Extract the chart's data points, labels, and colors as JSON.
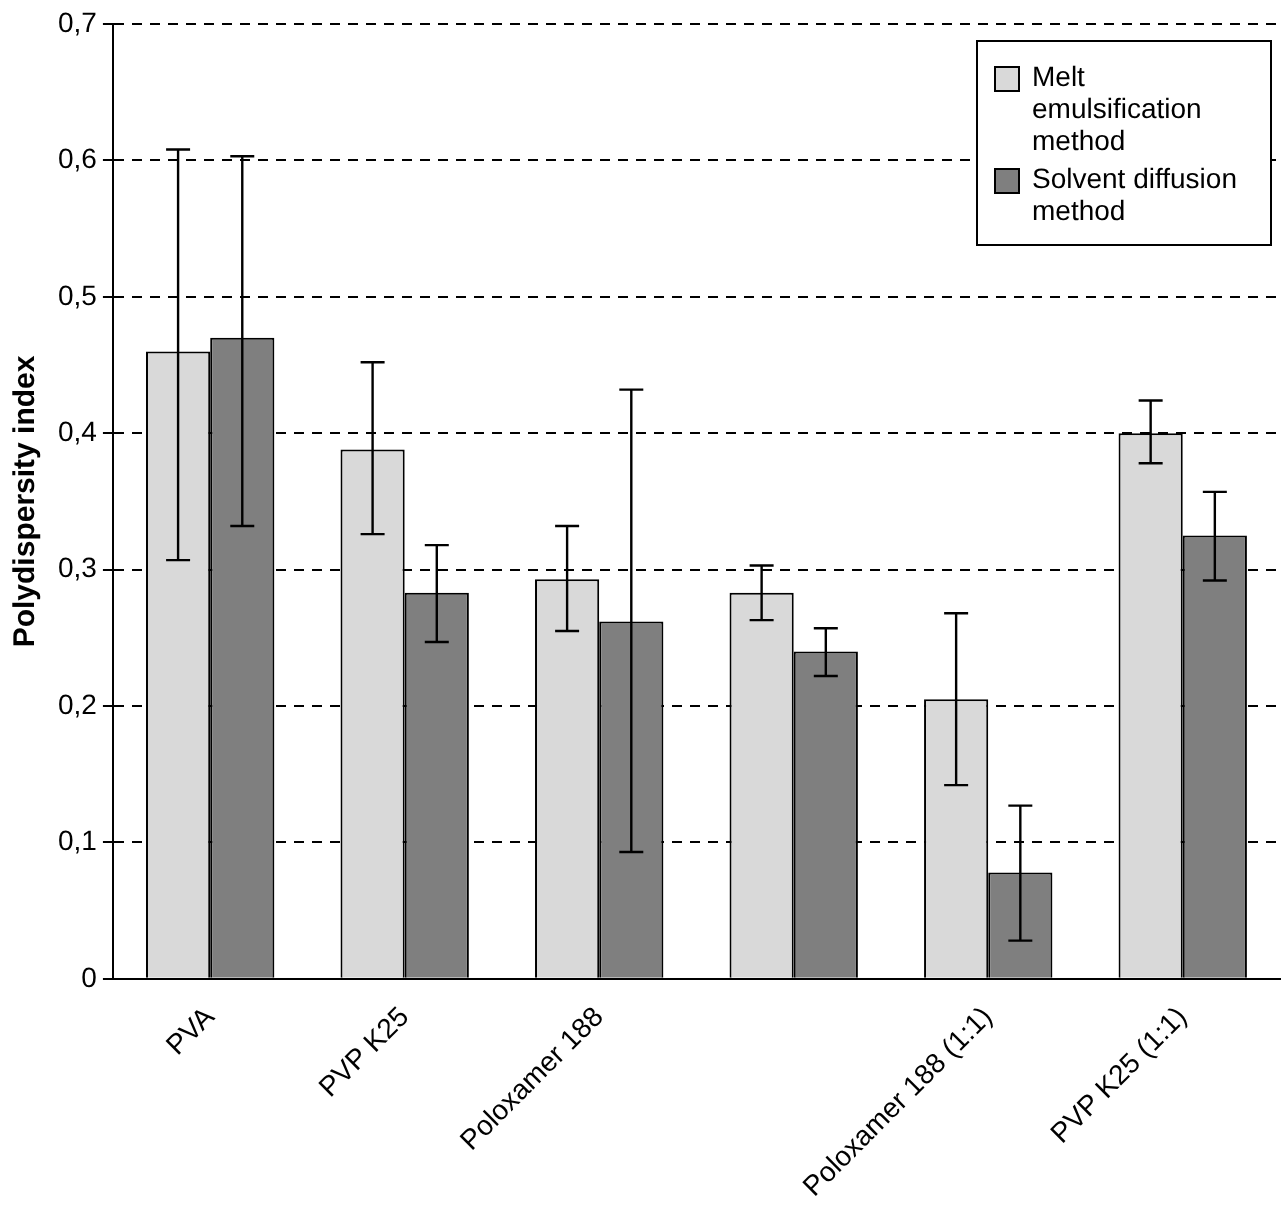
{
  "chart_data": {
    "type": "bar",
    "ylabel": "Polydispersity index",
    "categories": [
      "PVA",
      "PVP K25",
      "Poloxamer 188",
      null,
      "Poloxamer 188 (1:1)",
      "PVP K25 (1:1)"
    ],
    "series": [
      {
        "name": "Melt emulsification method",
        "color": "#d9d9d9",
        "values": [
          0.46,
          0.388,
          0.293,
          0.283,
          0.205,
          0.4
        ],
        "errors": [
          [
            0.307,
            0.608
          ],
          [
            0.326,
            0.452
          ],
          [
            0.255,
            0.332
          ],
          [
            0.263,
            0.303
          ],
          [
            0.142,
            0.268
          ],
          [
            0.378,
            0.424
          ]
        ]
      },
      {
        "name": "Solvent diffusion method",
        "color": "#7f7f7f",
        "values": [
          0.47,
          0.283,
          0.262,
          0.24,
          0.078,
          0.325
        ],
        "errors": [
          [
            0.332,
            0.603
          ],
          [
            0.247,
            0.318
          ],
          [
            0.093,
            0.432
          ],
          [
            0.222,
            0.257
          ],
          [
            0.028,
            0.127
          ],
          [
            0.292,
            0.357
          ]
        ]
      }
    ],
    "ylim": [
      0,
      0.7
    ],
    "yticks": [
      {
        "value": 0,
        "label": "0"
      },
      {
        "value": 0.1,
        "label": "0,1"
      },
      {
        "value": 0.2,
        "label": "0,2"
      },
      {
        "value": 0.3,
        "label": "0,3"
      },
      {
        "value": 0.4,
        "label": "0,4"
      },
      {
        "value": 0.5,
        "label": "0,5"
      },
      {
        "value": 0.6,
        "label": "0,6"
      },
      {
        "value": 0.7,
        "label": "0,7"
      }
    ],
    "grid": "y",
    "line_style": "dashed",
    "legend": "top right"
  }
}
